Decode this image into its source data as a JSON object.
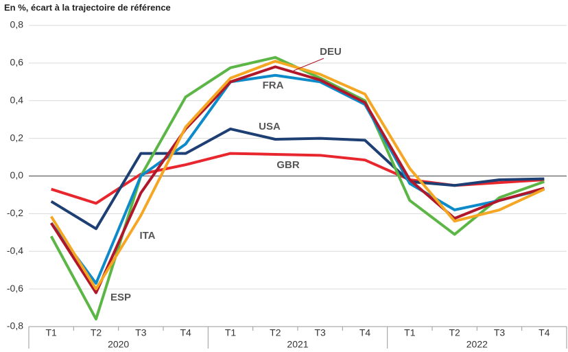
{
  "chart_data": {
    "type": "line",
    "subtitle": "En %, écart à la trajectoire de référence",
    "categories": [
      "T1",
      "T2",
      "T3",
      "T4",
      "T1",
      "T2",
      "T3",
      "T4",
      "T1",
      "T2",
      "T3",
      "T4"
    ],
    "groups": [
      "2020",
      "2021",
      "2022"
    ],
    "ylim": [
      -0.8,
      0.8
    ],
    "yticks": [
      {
        "value": -0.8,
        "label": "-0,8"
      },
      {
        "value": -0.6,
        "label": "-0,6"
      },
      {
        "value": -0.4,
        "label": "-0,4"
      },
      {
        "value": -0.2,
        "label": "-0,2"
      },
      {
        "value": 0,
        "label": "0,0"
      },
      {
        "value": 0.2,
        "label": "0,2"
      },
      {
        "value": 0.4,
        "label": "0,4"
      },
      {
        "value": 0.6,
        "label": "0,6"
      },
      {
        "value": 0.8,
        "label": "0,8"
      }
    ],
    "grid": true,
    "series": [
      {
        "name": "GBR",
        "color": "#e8262d",
        "values": [
          -0.07,
          -0.145,
          0.01,
          0.06,
          0.12,
          0.115,
          0.11,
          0.085,
          -0.02,
          -0.05,
          -0.035,
          -0.02
        ]
      },
      {
        "name": "USA",
        "color": "#1e3f73",
        "values": [
          -0.135,
          -0.28,
          0.12,
          0.12,
          0.25,
          0.195,
          0.2,
          0.19,
          -0.03,
          -0.05,
          -0.02,
          -0.015
        ]
      },
      {
        "name": "ESP",
        "color": "#5cb646",
        "values": [
          -0.32,
          -0.76,
          0.0,
          0.42,
          0.575,
          0.63,
          0.52,
          0.4,
          -0.13,
          -0.31,
          -0.115,
          -0.03
        ]
      },
      {
        "name": "FRA",
        "color": "#0d8ac9",
        "values": [
          -0.25,
          -0.57,
          0.0,
          0.17,
          0.5,
          0.535,
          0.5,
          0.38,
          -0.04,
          -0.18,
          -0.13,
          -0.07
        ]
      },
      {
        "name": "DEU",
        "color": "#b0172a",
        "values": [
          -0.25,
          -0.62,
          -0.09,
          0.25,
          0.5,
          0.58,
          0.51,
          0.39,
          -0.02,
          -0.225,
          -0.13,
          -0.065
        ]
      },
      {
        "name": "ITA",
        "color": "#f5a623",
        "values": [
          -0.215,
          -0.6,
          -0.21,
          0.26,
          0.52,
          0.61,
          0.54,
          0.435,
          0.04,
          -0.24,
          -0.18,
          -0.07
        ]
      }
    ]
  }
}
